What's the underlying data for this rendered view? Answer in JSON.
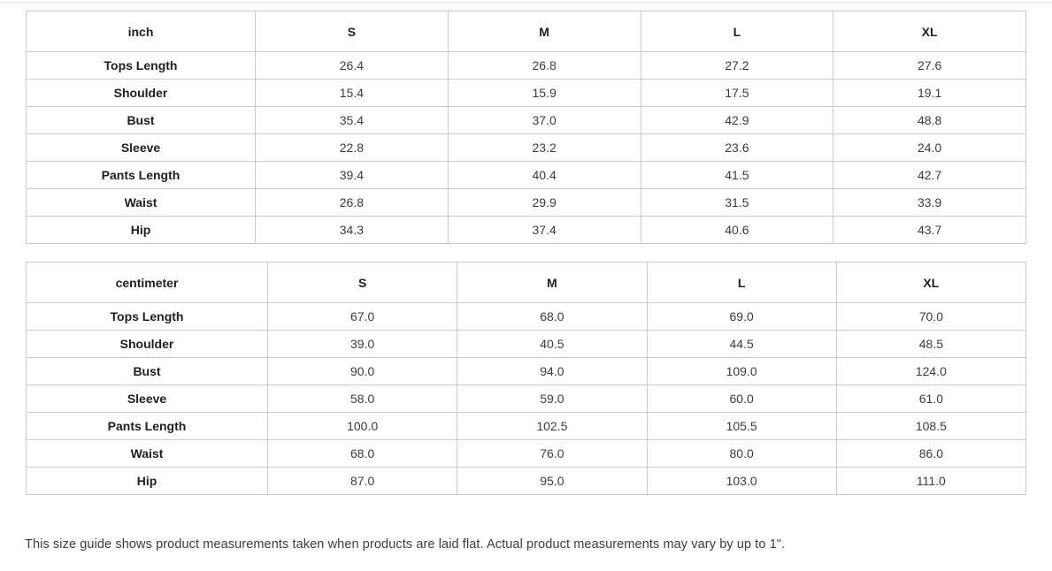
{
  "colors": {
    "table_border": "#cbcbcb",
    "top_divider": "#e4e4e4",
    "header_text": "#1f1f1f",
    "value_text": "#3c3c3c",
    "background": "#ffffff"
  },
  "size_tables": [
    {
      "unit_label": "inch",
      "columns": [
        "S",
        "M",
        "L",
        "XL"
      ],
      "rows": [
        {
          "label": "Tops Length",
          "values": [
            "26.4",
            "26.8",
            "27.2",
            "27.6"
          ]
        },
        {
          "label": "Shoulder",
          "values": [
            "15.4",
            "15.9",
            "17.5",
            "19.1"
          ]
        },
        {
          "label": "Bust",
          "values": [
            "35.4",
            "37.0",
            "42.9",
            "48.8"
          ]
        },
        {
          "label": "Sleeve",
          "values": [
            "22.8",
            "23.2",
            "23.6",
            "24.0"
          ]
        },
        {
          "label": "Pants Length",
          "values": [
            "39.4",
            "40.4",
            "41.5",
            "42.7"
          ]
        },
        {
          "label": "Waist",
          "values": [
            "26.8",
            "29.9",
            "31.5",
            "33.9"
          ]
        },
        {
          "label": "Hip",
          "values": [
            "34.3",
            "37.4",
            "40.6",
            "43.7"
          ]
        }
      ]
    },
    {
      "unit_label": "centimeter",
      "columns": [
        "S",
        "M",
        "L",
        "XL"
      ],
      "rows": [
        {
          "label": "Tops Length",
          "values": [
            "67.0",
            "68.0",
            "69.0",
            "70.0"
          ]
        },
        {
          "label": "Shoulder",
          "values": [
            "39.0",
            "40.5",
            "44.5",
            "48.5"
          ]
        },
        {
          "label": "Bust",
          "values": [
            "90.0",
            "94.0",
            "109.0",
            "124.0"
          ]
        },
        {
          "label": "Sleeve",
          "values": [
            "58.0",
            "59.0",
            "60.0",
            "61.0"
          ]
        },
        {
          "label": "Pants Length",
          "values": [
            "100.0",
            "102.5",
            "105.5",
            "108.5"
          ]
        },
        {
          "label": "Waist",
          "values": [
            "68.0",
            "76.0",
            "80.0",
            "86.0"
          ]
        },
        {
          "label": "Hip",
          "values": [
            "87.0",
            "95.0",
            "103.0",
            "111.0"
          ]
        }
      ]
    }
  ],
  "footer_note": "This size guide shows product measurements taken when products are laid flat. Actual product measurements may vary by up to 1\"."
}
